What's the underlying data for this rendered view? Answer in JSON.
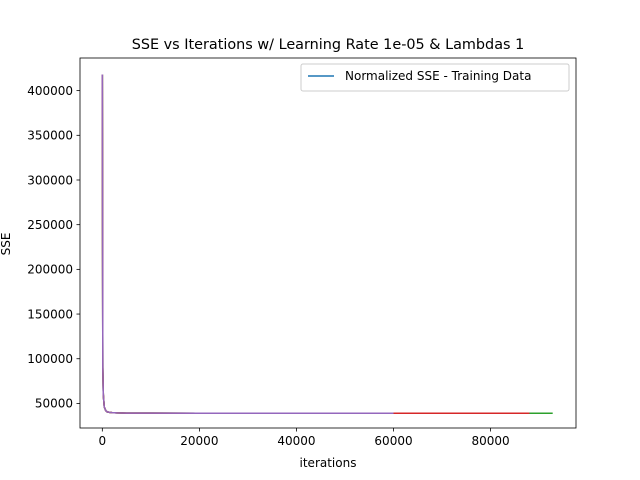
{
  "chart_data": {
    "type": "line",
    "title": "SSE vs Iterations w/ Learning Rate 1e-05 & Lambdas 1",
    "xlabel": "iterations",
    "ylabel": "SSE",
    "xlim": [
      -4600,
      97600
    ],
    "ylim": [
      22500,
      436500
    ],
    "xticks": [
      0,
      20000,
      40000,
      60000,
      80000
    ],
    "xtick_labels": [
      "0",
      "20000",
      "40000",
      "60000",
      "80000"
    ],
    "yticks": [
      50000,
      100000,
      150000,
      200000,
      250000,
      300000,
      350000,
      400000
    ],
    "ytick_labels": [
      "50000",
      "100000",
      "150000",
      "200000",
      "250000",
      "300000",
      "350000",
      "400000"
    ],
    "grid": false,
    "legend": {
      "placement": "upper right",
      "entries": [
        "Normalized SSE - Training Data"
      ]
    },
    "series": [
      {
        "name": "Normalized SSE - Training Data",
        "color": "#1f77b4",
        "x": [
          0,
          100,
          200,
          400,
          700,
          1000,
          1500,
          2000,
          3000,
          5000,
          10000,
          20000,
          40000,
          60000,
          80000,
          92000
        ],
        "y": [
          418000,
          90000,
          60000,
          46000,
          42000,
          40500,
          40000,
          39700,
          39400,
          39200,
          39100,
          39000,
          39000,
          39000,
          39000,
          39000
        ]
      },
      {
        "color": "#ff7f0e",
        "x": [
          0,
          100,
          200,
          400,
          700,
          1000,
          1500,
          2000,
          3000,
          5000,
          10000,
          20000,
          40000,
          60000,
          80000,
          91000
        ],
        "y": [
          418000,
          90000,
          60000,
          46000,
          42000,
          40500,
          40000,
          39700,
          39400,
          39200,
          39100,
          39000,
          39000,
          39000,
          39000,
          39000
        ]
      },
      {
        "color": "#2ca02c",
        "x": [
          0,
          100,
          200,
          400,
          700,
          1000,
          1500,
          2000,
          3000,
          5000,
          10000,
          20000,
          40000,
          60000,
          80000,
          92800
        ],
        "y": [
          418000,
          90000,
          60000,
          46000,
          42000,
          40500,
          40000,
          39700,
          39400,
          39200,
          39100,
          39000,
          39000,
          39000,
          39000,
          39000
        ]
      },
      {
        "color": "#d62728",
        "x": [
          0,
          100,
          200,
          400,
          700,
          1000,
          1500,
          2000,
          3000,
          5000,
          10000,
          20000,
          40000,
          60000,
          80000,
          88000
        ],
        "y": [
          418000,
          90000,
          60000,
          46000,
          42000,
          40500,
          40000,
          39700,
          39400,
          39200,
          39100,
          39000,
          39000,
          39000,
          39000,
          39000
        ]
      },
      {
        "color": "#9467bd",
        "x": [
          0,
          100,
          200,
          400,
          700,
          1000,
          1500,
          2000,
          3000,
          5000,
          10000,
          20000,
          40000,
          60000
        ],
        "y": [
          418000,
          90000,
          60000,
          46000,
          42000,
          40500,
          40000,
          39700,
          39400,
          39200,
          39100,
          39000,
          39000,
          39000
        ]
      }
    ]
  }
}
